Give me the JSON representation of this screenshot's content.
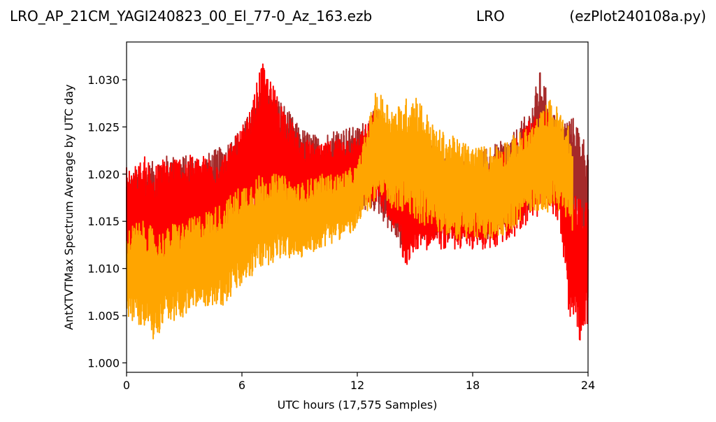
{
  "chart_data": {
    "type": "line",
    "title_left": "LRO_AP_21CM_YAGI240823_00_El_77-0_Az_163.ezb",
    "title_center": "LRO",
    "title_right": "(ezPlot240108a.py)",
    "xlabel": "UTC hours  (17,575 Samples)",
    "ylabel": "AntXTVTMax Spectrum Average by UTC day",
    "xlim": [
      0,
      24
    ],
    "ylim": [
      0.999,
      1.034
    ],
    "x_ticks": [
      0,
      6,
      12,
      18,
      24
    ],
    "x_tick_labels": [
      "0",
      "6",
      "12",
      "18",
      "24"
    ],
    "y_ticks": [
      1.0,
      1.005,
      1.01,
      1.015,
      1.02,
      1.025,
      1.03
    ],
    "y_tick_labels": [
      "1.000",
      "1.005",
      "1.010",
      "1.015",
      "1.020",
      "1.025",
      "1.030"
    ],
    "grid": false,
    "legend": "none",
    "series": [
      {
        "color": "#a52a2a",
        "x": [
          0,
          1,
          2,
          3,
          4,
          5,
          6,
          7,
          8,
          9,
          10,
          11,
          12,
          13,
          14,
          14.5,
          15,
          16,
          17,
          18,
          19,
          20,
          21,
          21.5,
          22,
          22.5,
          23,
          23.3,
          24
        ],
        "low": [
          1.008,
          1.01,
          1.011,
          1.012,
          1.012,
          1.013,
          1.015,
          1.016,
          1.016,
          1.015,
          1.015,
          1.016,
          1.016,
          1.016,
          1.013,
          1.011,
          1.013,
          1.013,
          1.013,
          1.013,
          1.013,
          1.014,
          1.016,
          1.018,
          1.019,
          1.019,
          1.018,
          1.015,
          1.01
        ],
        "high": [
          1.02,
          1.021,
          1.022,
          1.022,
          1.022,
          1.023,
          1.025,
          1.029,
          1.028,
          1.025,
          1.024,
          1.025,
          1.025,
          1.027,
          1.024,
          1.023,
          1.024,
          1.023,
          1.021,
          1.022,
          1.023,
          1.024,
          1.027,
          1.031,
          1.028,
          1.025,
          1.026,
          1.026,
          1.023
        ]
      },
      {
        "color": "#ff0000",
        "x": [
          0,
          0.5,
          1,
          1.5,
          2,
          3,
          4,
          5,
          6,
          6.5,
          7,
          7.5,
          8,
          9,
          10,
          11,
          12,
          13,
          14,
          14.5,
          15,
          16,
          17,
          18,
          19,
          20,
          21,
          22,
          22.5,
          22.8,
          23,
          23.3,
          23.6,
          24
        ],
        "low": [
          1.008,
          1.009,
          1.008,
          1.005,
          1.008,
          1.01,
          1.011,
          1.012,
          1.014,
          1.015,
          1.016,
          1.016,
          1.016,
          1.015,
          1.015,
          1.016,
          1.017,
          1.017,
          1.014,
          1.01,
          1.012,
          1.012,
          1.012,
          1.012,
          1.012,
          1.013,
          1.015,
          1.016,
          1.015,
          1.009,
          1.005,
          1.004,
          1.002,
          1.004
        ],
        "high": [
          1.021,
          1.021,
          1.022,
          1.021,
          1.022,
          1.022,
          1.022,
          1.022,
          1.025,
          1.027,
          1.032,
          1.03,
          1.028,
          1.024,
          1.023,
          1.024,
          1.024,
          1.027,
          1.022,
          1.022,
          1.023,
          1.022,
          1.021,
          1.021,
          1.022,
          1.023,
          1.026,
          1.027,
          1.025,
          1.021,
          1.019,
          1.018,
          1.018,
          1.017
        ]
      },
      {
        "color": "#ffa500",
        "x": [
          0,
          0.5,
          1,
          1.5,
          2,
          2.5,
          3,
          4,
          5,
          6,
          7,
          8,
          9,
          10,
          11,
          12,
          12.5,
          13,
          14,
          15,
          16,
          17,
          18,
          19,
          20,
          21,
          22,
          22.5,
          23,
          23.2
        ],
        "low": [
          1.005,
          1.004,
          1.004,
          1.002,
          1.005,
          1.004,
          1.005,
          1.006,
          1.006,
          1.008,
          1.01,
          1.011,
          1.011,
          1.012,
          1.013,
          1.014,
          1.016,
          1.017,
          1.016,
          1.015,
          1.014,
          1.013,
          1.013,
          1.013,
          1.014,
          1.016,
          1.016,
          1.016,
          1.015,
          1.014
        ],
        "high": [
          1.014,
          1.015,
          1.015,
          1.014,
          1.014,
          1.015,
          1.015,
          1.016,
          1.017,
          1.019,
          1.02,
          1.02,
          1.019,
          1.02,
          1.02,
          1.021,
          1.025,
          1.029,
          1.027,
          1.029,
          1.025,
          1.024,
          1.023,
          1.023,
          1.024,
          1.025,
          1.028,
          1.027,
          1.025,
          1.023
        ]
      }
    ]
  }
}
